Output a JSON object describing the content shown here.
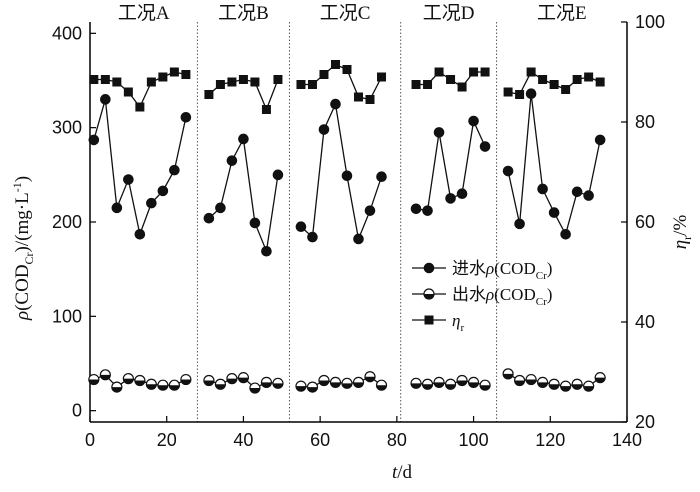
{
  "chart_data": {
    "type": "line",
    "conditions": [
      {
        "label": "工况A",
        "x_start": 0,
        "x_end": 28
      },
      {
        "label": "工况B",
        "x_start": 28,
        "x_end": 52
      },
      {
        "label": "工况C",
        "x_start": 52,
        "x_end": 81
      },
      {
        "label": "工况D",
        "x_start": 81,
        "x_end": 106
      },
      {
        "label": "工况E",
        "x_start": 106,
        "x_end": 140
      }
    ],
    "xlabel": {
      "italic": "t",
      "rest": "/d"
    },
    "ylabel_left": "ρ(CODCr)/(mg·L⁻¹)",
    "ylabel_right": "ηr/%",
    "x_ticks": [
      0,
      20,
      40,
      60,
      80,
      100,
      120,
      140
    ],
    "y_left_ticks": [
      0,
      100,
      200,
      300,
      400
    ],
    "y_right_ticks": [
      20,
      40,
      60,
      80,
      100
    ],
    "xlim": [
      0,
      140
    ],
    "ylim_left": [
      -12,
      412
    ],
    "ylim_right": [
      20,
      100
    ],
    "legend_position": "center-right",
    "series": [
      {
        "name": "进水ρ(CODCr)",
        "legend": {
          "prefix": "进水",
          "greek": "ρ",
          "open": "(COD",
          "sub": "Cr",
          "close": ")"
        },
        "axis": "left",
        "marker": "filled-circle",
        "segments": [
          {
            "x": [
              1,
              4,
              7,
              10,
              13,
              16,
              19,
              22,
              25
            ],
            "y": [
              287,
              330,
              215,
              245,
              187,
              220,
              233,
              255,
              311
            ]
          },
          {
            "x": [
              31,
              34,
              37,
              40,
              43,
              46,
              49
            ],
            "y": [
              204,
              215,
              265,
              288,
              199,
              169,
              250
            ]
          },
          {
            "x": [
              55,
              58,
              61,
              64,
              67,
              70,
              73,
              76
            ],
            "y": [
              195,
              184,
              298,
              325,
              249,
              182,
              212,
              248
            ]
          },
          {
            "x": [
              85,
              88,
              91,
              94,
              97,
              100,
              103
            ],
            "y": [
              214,
              212,
              295,
              225,
              230,
              307,
              280
            ]
          },
          {
            "x": [
              109,
              112,
              115,
              118,
              121,
              124,
              127,
              130,
              133
            ],
            "y": [
              254,
              198,
              336,
              235,
              210,
              187,
              232,
              228,
              287
            ]
          }
        ]
      },
      {
        "name": "出水ρ(CODCr)",
        "legend": {
          "prefix": "出水",
          "greek": "ρ",
          "open": "(COD",
          "sub": "Cr",
          "close": ")"
        },
        "axis": "left",
        "marker": "half-filled-circle",
        "segments": [
          {
            "x": [
              1,
              4,
              7,
              10,
              13,
              16,
              19,
              22,
              25
            ],
            "y": [
              33,
              38,
              25,
              34,
              32,
              28,
              27,
              27,
              33
            ]
          },
          {
            "x": [
              31,
              34,
              37,
              40,
              43,
              46,
              49
            ],
            "y": [
              32,
              28,
              34,
              35,
              24,
              30,
              29
            ]
          },
          {
            "x": [
              55,
              58,
              61,
              64,
              67,
              70,
              73,
              76
            ],
            "y": [
              26,
              25,
              32,
              30,
              29,
              30,
              36,
              27
            ]
          },
          {
            "x": [
              85,
              88,
              91,
              94,
              97,
              100,
              103
            ],
            "y": [
              29,
              28,
              30,
              28,
              32,
              30,
              27
            ]
          },
          {
            "x": [
              109,
              112,
              115,
              118,
              121,
              124,
              127,
              130,
              133
            ],
            "y": [
              39,
              32,
              33,
              30,
              28,
              26,
              28,
              26,
              35
            ]
          }
        ]
      },
      {
        "name": "ηr",
        "legend": {
          "prefix": "",
          "greek": "η",
          "open": "",
          "sub": "r",
          "close": ""
        },
        "axis": "right",
        "marker": "filled-square",
        "segments": [
          {
            "x": [
              1,
              4,
              7,
              10,
              13,
              16,
              19,
              22,
              25
            ],
            "y": [
              88.5,
              88.5,
              88.0,
              86.0,
              83.0,
              88.0,
              89.0,
              90.0,
              89.5
            ]
          },
          {
            "x": [
              31,
              34,
              37,
              40,
              43,
              46,
              49
            ],
            "y": [
              85.5,
              87.5,
              88.0,
              88.5,
              88.0,
              82.5,
              88.5
            ]
          },
          {
            "x": [
              55,
              58,
              61,
              64,
              67,
              70,
              73,
              76
            ],
            "y": [
              87.5,
              87.5,
              89.5,
              91.5,
              90.5,
              85.0,
              84.5,
              89.0
            ]
          },
          {
            "x": [
              85,
              88,
              91,
              94,
              97,
              100,
              103
            ],
            "y": [
              87.5,
              87.5,
              90.0,
              88.5,
              87.0,
              90.0,
              90.0
            ]
          },
          {
            "x": [
              109,
              112,
              115,
              118,
              121,
              124,
              127,
              130,
              133
            ],
            "y": [
              86.0,
              85.5,
              90.0,
              88.5,
              87.5,
              86.5,
              88.5,
              89.0,
              88.0
            ]
          }
        ]
      }
    ]
  }
}
